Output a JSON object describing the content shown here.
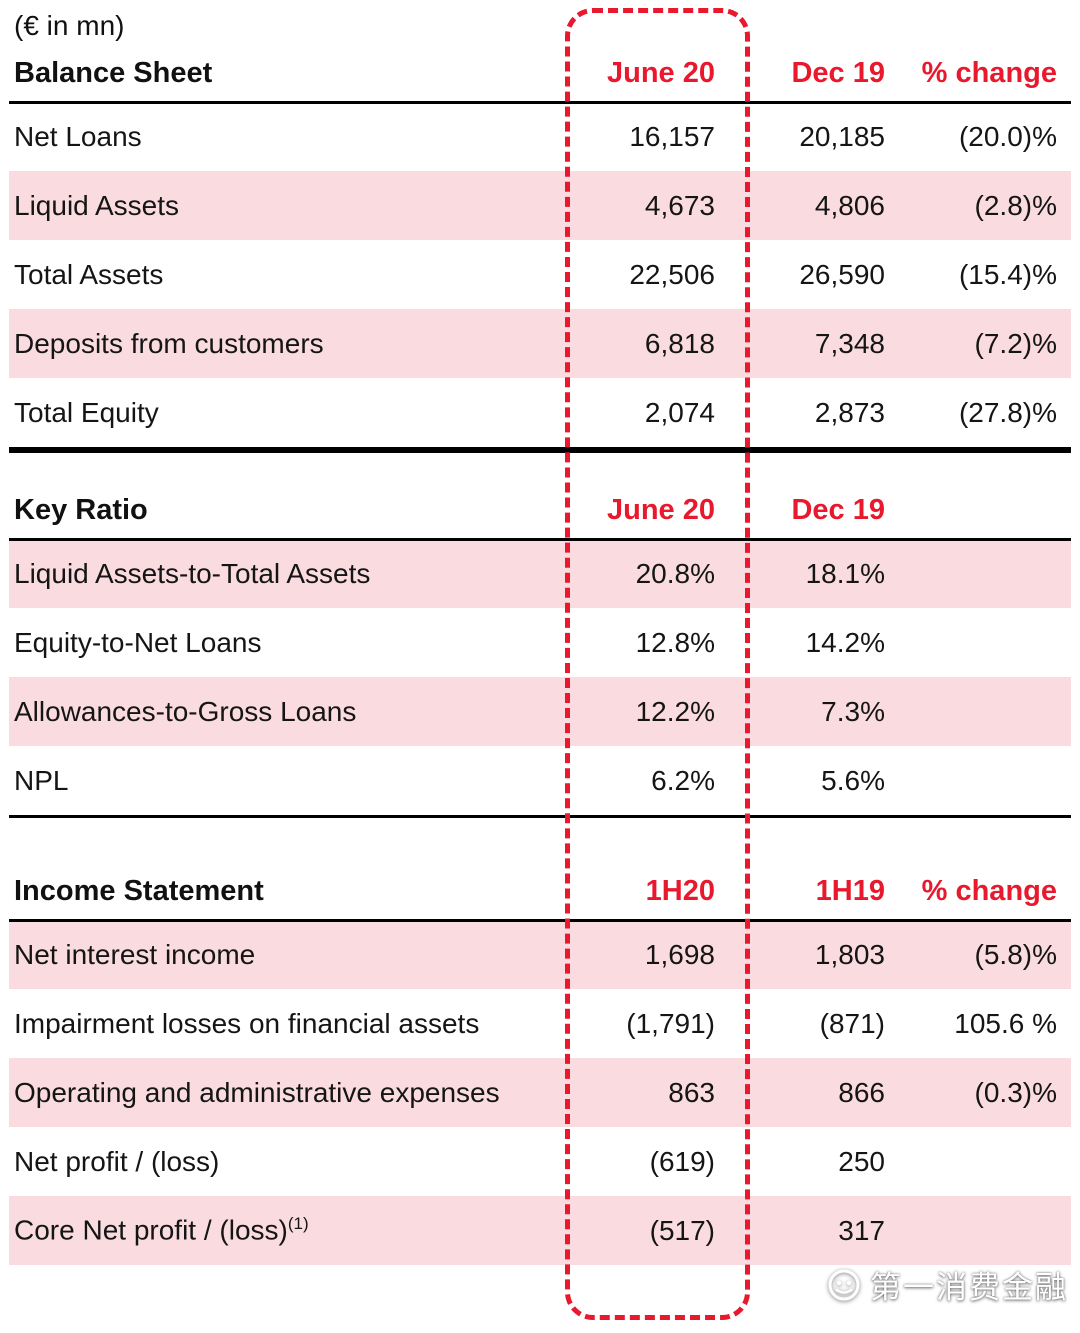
{
  "unit_label": "(€ in mn)",
  "colors": {
    "accent_red": "#e8192d",
    "row_pink": "#fadce0",
    "text_black": "#151515"
  },
  "highlight": {
    "description": "red dashed rounded box around first value column (June 20 / 1H20)"
  },
  "sections": [
    {
      "id": "balance_sheet",
      "title": "Balance Sheet",
      "columns": [
        "June 20",
        "Dec 19",
        "% change"
      ],
      "rows": [
        {
          "label": "Net Loans",
          "shaded": false,
          "values": [
            "16,157",
            "20,185",
            "(20.0)%"
          ]
        },
        {
          "label": "Liquid Assets",
          "shaded": true,
          "values": [
            "4,673",
            "4,806",
            "(2.8)%"
          ]
        },
        {
          "label": "Total Assets",
          "shaded": false,
          "values": [
            "22,506",
            "26,590",
            "(15.4)%"
          ]
        },
        {
          "label": "Deposits from customers",
          "shaded": true,
          "values": [
            "6,818",
            "7,348",
            "(7.2)%"
          ]
        },
        {
          "label": "Total Equity",
          "shaded": false,
          "values": [
            "2,074",
            "2,873",
            "(27.8)%"
          ]
        }
      ]
    },
    {
      "id": "key_ratio",
      "title": "Key Ratio",
      "columns": [
        "June 20",
        "Dec 19",
        ""
      ],
      "rows": [
        {
          "label": "Liquid Assets-to-Total Assets",
          "shaded": true,
          "values": [
            "20.8%",
            "18.1%",
            ""
          ]
        },
        {
          "label": "Equity-to-Net Loans",
          "shaded": false,
          "values": [
            "12.8%",
            "14.2%",
            ""
          ]
        },
        {
          "label": "Allowances-to-Gross Loans",
          "shaded": true,
          "values": [
            "12.2%",
            "7.3%",
            ""
          ]
        },
        {
          "label": "NPL",
          "shaded": false,
          "values": [
            "6.2%",
            "5.6%",
            ""
          ]
        }
      ]
    },
    {
      "id": "income_statement",
      "title": "Income Statement",
      "columns": [
        "1H20",
        "1H19",
        "% change"
      ],
      "rows": [
        {
          "label": "Net interest income",
          "shaded": true,
          "values": [
            "1,698",
            "1,803",
            "(5.8)%"
          ]
        },
        {
          "label": "Impairment losses on financial assets",
          "shaded": false,
          "values": [
            "(1,791)",
            "(871)",
            "105.6 %"
          ]
        },
        {
          "label": "Operating and administrative expenses",
          "shaded": true,
          "values": [
            "863",
            "866",
            "(0.3)%"
          ]
        },
        {
          "label": "Net profit / (loss)",
          "shaded": false,
          "values": [
            "(619)",
            "250",
            ""
          ]
        },
        {
          "label": "Core Net profit / (loss)",
          "label_superscript": "(1)",
          "shaded": true,
          "values": [
            "(517)",
            "317",
            ""
          ]
        }
      ]
    }
  ],
  "watermark": {
    "text": "第一消费金融"
  }
}
